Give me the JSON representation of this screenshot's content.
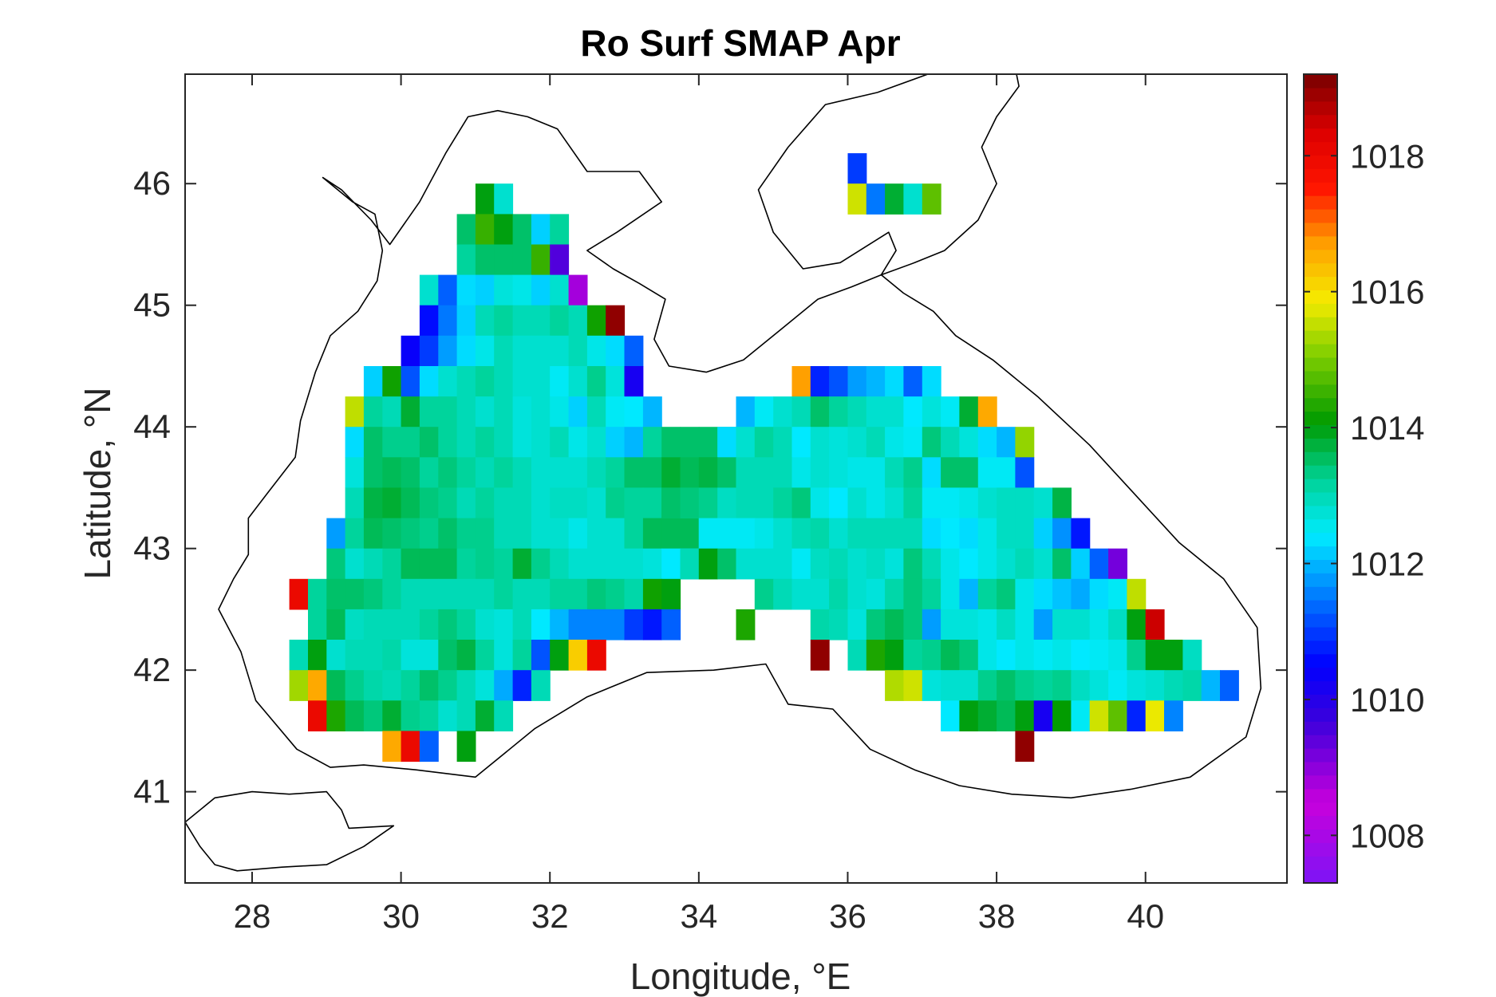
{
  "chart_data": {
    "type": "heatmap",
    "title": "Ro Surf SMAP Apr",
    "xlabel": "Longitude, °E",
    "ylabel": "Latitude, °N",
    "xlim": [
      27.1,
      41.9
    ],
    "ylim": [
      40.25,
      46.9
    ],
    "xticks": [
      28,
      30,
      32,
      34,
      36,
      38,
      40
    ],
    "yticks": [
      41,
      42,
      43,
      44,
      45,
      46
    ],
    "colorbar": {
      "min": 1007.3,
      "max": 1019.2,
      "ticks": [
        1008,
        1010,
        1012,
        1014,
        1016,
        1018
      ],
      "colormap": "jet-like (purple-blue-cyan-green-yellow-red-darkred)"
    },
    "cell_size_deg": 0.25,
    "rows": [
      {
        "lat": 45.875,
        "lon_start": 31.0,
        "values": [
          1014.0,
          1012.8
        ]
      },
      {
        "lat": 45.625,
        "lon_start": 30.75,
        "values": [
          1013.5,
          1014.5,
          1014.0,
          1013.5,
          1012.2,
          1013.2
        ]
      },
      {
        "lat": 45.375,
        "lon_start": 30.75,
        "values": [
          1013.2,
          1013.5,
          1013.5,
          1013.5,
          1014.5,
          1009.5
        ]
      },
      {
        "lat": 45.125,
        "lon_start": 30.25,
        "values": [
          1012.8,
          1011.3,
          1012.3,
          1012.2,
          1012.7,
          1012.6,
          1012.2,
          1012.8,
          1008.8
        ]
      },
      {
        "lat": 44.875,
        "lon_start": 30.25,
        "values": [
          1010.6,
          1011.5,
          1012.2,
          1013.0,
          1013.2,
          1013.0,
          1013.0,
          1013.2,
          1013.0,
          1014.2,
          1019.0
        ]
      },
      {
        "lat": 44.625,
        "lon_start": 30.0,
        "values": [
          1010.4,
          1011.0,
          1011.8,
          1012.3,
          1012.6,
          1013.0,
          1012.8,
          1012.8,
          1012.8,
          1013.0,
          1012.6,
          1012.3,
          1011.3
        ]
      },
      {
        "lat": 44.375,
        "lon_start": 29.5,
        "values": [
          1012.2,
          1014.2,
          1011.2,
          1012.3,
          1012.8,
          1013.0,
          1013.2,
          1013.0,
          1012.8,
          1012.8,
          1012.5,
          1012.8,
          1013.3,
          1012.7,
          1010.2
        ]
      },
      {
        "lat": 44.125,
        "lon_start": 29.25,
        "values": [
          1015.5,
          1013.2,
          1013.0,
          1013.8,
          1013.2,
          1013.2,
          1013.0,
          1012.8,
          1013.0,
          1012.7,
          1012.8,
          1012.6,
          1012.2,
          1013.0,
          1012.5,
          1012.4,
          1012.0
        ]
      },
      {
        "lat": 43.875,
        "lon_start": 29.25,
        "values": [
          1012.3,
          1013.5,
          1013.3,
          1013.3,
          1013.5,
          1013.2,
          1013.0,
          1013.2,
          1013.0,
          1012.7,
          1012.8,
          1013.0,
          1012.6,
          1012.8,
          1012.2,
          1012.0,
          1013.2,
          1013.5,
          1013.5,
          1013.5,
          1013.0,
          1012.5
        ]
      },
      {
        "lat": 43.625,
        "lon_start": 29.25,
        "values": [
          1012.7,
          1013.5,
          1013.6,
          1013.5,
          1013.2,
          1013.4,
          1013.2,
          1013.0,
          1013.2,
          1013.0,
          1012.8,
          1012.8,
          1012.8,
          1013.0,
          1013.2,
          1013.5,
          1013.5,
          1013.8,
          1013.6,
          1013.6
        ]
      },
      {
        "lat": 43.375,
        "lon_start": 29.25,
        "values": [
          1013.0,
          1013.7,
          1013.8,
          1013.6,
          1013.4,
          1013.3,
          1013.0,
          1013.2,
          1013.0,
          1013.0,
          1012.8,
          1012.9,
          1012.9,
          1012.8,
          1013.3,
          1013.2,
          1013.2,
          1013.6,
          1013.4,
          1013.5,
          1013.5,
          1013.0
        ]
      },
      {
        "lat": 43.125,
        "lon_start": 29.0,
        "values": [
          1011.8,
          1013.2,
          1013.6,
          1013.5,
          1013.4,
          1013.3,
          1013.5,
          1013.3,
          1013.3,
          1013.0,
          1013.0,
          1012.8,
          1012.8,
          1012.6,
          1012.8,
          1012.8,
          1013.2,
          1013.6,
          1013.6,
          1013.6,
          1013.0
        ]
      },
      {
        "lat": 42.875,
        "lon_start": 29.0,
        "values": [
          1013.4,
          1012.8,
          1013.0,
          1013.2,
          1013.6,
          1013.6,
          1013.6,
          1013.2,
          1013.3,
          1013.2,
          1013.8,
          1013.3,
          1013.0,
          1012.8,
          1012.8,
          1012.8,
          1012.8,
          1012.7,
          1012.4,
          1012.2,
          1012.8
        ]
      },
      {
        "lat": 42.625,
        "lon_start": 28.5,
        "values": [
          1018.0,
          1013.2,
          1013.5,
          1013.5,
          1013.4,
          1013.2,
          1013.0,
          1013.0,
          1013.0,
          1013.0,
          1013.0,
          1013.2,
          1013.0,
          1013.0,
          1013.2,
          1013.2,
          1013.4,
          1013.3,
          1013.1,
          1014.2,
          1014.0
        ]
      },
      {
        "lat": 42.375,
        "lon_start": 28.75,
        "values": [
          1013.2,
          1013.6,
          1012.9,
          1013.0,
          1013.0,
          1013.0,
          1013.2,
          1013.4,
          1013.2,
          1012.8,
          1012.7,
          1013.0,
          1012.4,
          1012.0,
          1011.6,
          1011.6,
          1011.6,
          1011.0,
          1010.7,
          1011.3
        ]
      },
      {
        "lat": 42.125,
        "lon_start": 28.5,
        "values": [
          1013.0,
          1014.0,
          1012.8,
          1013.0,
          1013.0,
          1013.1,
          1012.7,
          1012.7,
          1013.5,
          1013.7,
          1013.2,
          1012.7,
          1013.2,
          1011.2,
          1014.0,
          1016.2,
          1018.0
        ]
      },
      {
        "lat": 41.875,
        "lon_start": 28.5,
        "values": [
          1015.3,
          1016.6,
          1013.6,
          1013.3,
          1013.1,
          1013.0,
          1013.2,
          1013.5,
          1013.3,
          1013.0,
          1012.7,
          1011.9,
          1010.8,
          1013.0
        ]
      },
      {
        "lat": 41.625,
        "lon_start": 28.75,
        "values": [
          1018.0,
          1014.3,
          1013.6,
          1013.4,
          1013.8,
          1013.3,
          1013.2,
          1012.8,
          1013.0,
          1013.8,
          1013.0
        ]
      },
      {
        "lat": 41.375,
        "lon_start": 29.75,
        "values": [
          1016.6,
          1018.0,
          1011.3,
          null,
          1014.0
        ]
      },
      {
        "lat": 44.375,
        "lon_start": 35.25,
        "values": [
          1016.7,
          1010.8,
          1011.2,
          1011.8,
          1012.0,
          1012.3,
          1011.3,
          1012.3
        ]
      },
      {
        "lat": 44.125,
        "lon_start": 34.5,
        "values": [
          1012.0,
          1012.5,
          1012.8,
          1013.0,
          1013.5,
          1013.2,
          1013.0,
          1012.8,
          1012.8,
          1012.4,
          1012.7,
          1012.5,
          1013.8,
          1016.6
        ]
      },
      {
        "lat": 43.875,
        "lon_start": 34.25,
        "values": [
          1012.3,
          1012.8,
          1013.2,
          1013.0,
          1012.4,
          1012.8,
          1012.7,
          1012.8,
          1013.0,
          1012.6,
          1012.5,
          1013.4,
          1013.0,
          1012.7,
          1012.3,
          1012.0,
          1015.2
        ]
      },
      {
        "lat": 43.625,
        "lon_start": 34.0,
        "values": [
          1013.7,
          1013.5,
          1013.0,
          1013.0,
          1013.0,
          1012.6,
          1012.8,
          1012.7,
          1012.6,
          1012.6,
          1013.0,
          1013.3,
          1012.3,
          1013.5,
          1013.5,
          1012.5,
          1012.5,
          1011.2
        ]
      },
      {
        "lat": 43.375,
        "lon_start": 33.5,
        "values": [
          1013.5,
          1013.4,
          1013.3,
          1012.9,
          1013.0,
          1013.0,
          1013.2,
          1013.4,
          1012.6,
          1012.4,
          1012.8,
          1012.6,
          1012.8,
          1013.2,
          1012.5,
          1012.5,
          1012.6,
          1012.8,
          1012.9,
          1012.9,
          1012.8,
          1013.7
        ]
      },
      {
        "lat": 43.125,
        "lon_start": 34.0,
        "values": [
          1012.5,
          1012.5,
          1012.5,
          1012.6,
          1012.8,
          1013.0,
          1013.1,
          1012.8,
          1013.0,
          1013.0,
          1013.0,
          1013.0,
          1012.3,
          1012.4,
          1012.3,
          1012.6,
          1012.9,
          1012.9,
          1012.2,
          1011.7,
          1010.7
        ]
      },
      {
        "lat": 42.875,
        "lon_start": 33.75,
        "values": [
          1013.0,
          1014.0,
          1013.5,
          1012.8,
          1012.8,
          1012.8,
          1012.5,
          1012.9,
          1013.0,
          1012.8,
          1012.9,
          1012.7,
          1013.4,
          1013.0,
          1012.6,
          1012.4,
          1012.6,
          1012.8,
          1013.0,
          1012.8,
          1013.5,
          1012.2,
          1011.3,
          1009.2
        ]
      },
      {
        "lat": 42.625,
        "lon_start": 34.75,
        "values": [
          1013.3,
          1013.0,
          1012.8,
          1012.8,
          1013.1,
          1012.8,
          1012.7,
          1013.1,
          1013.4,
          1013.2,
          1012.6,
          1012.0,
          1013.2,
          1013.4,
          1012.6,
          1012.3,
          1012.1,
          1011.9,
          1012.3,
          1012.5,
          1015.5
        ]
      },
      {
        "lat": 42.375,
        "lon_start": 34.5,
        "values": [
          1014.3,
          null,
          null,
          null,
          1013.1,
          1013.0,
          1012.7,
          1013.4,
          1013.6,
          1013.4,
          1011.8,
          1012.7,
          1012.7,
          1012.6,
          1012.9,
          1012.6,
          1011.8,
          1012.8,
          1012.8,
          1012.6,
          1012.9,
          1014.0,
          1018.5
        ]
      },
      {
        "lat": 42.125,
        "lon_start": 35.5,
        "values": [
          1019.0,
          null,
          1013.0,
          1014.3,
          1014.0,
          1013.2,
          1013.3,
          1013.6,
          1013.4,
          1012.6,
          1012.4,
          1012.6,
          1012.5,
          1012.6,
          1012.4,
          1012.5,
          1012.6,
          1013.3,
          1014.0,
          1014.0,
          1012.9
        ]
      },
      {
        "lat": 41.875,
        "lon_start": 36.5,
        "values": [
          1015.4,
          1015.6,
          1012.7,
          1012.8,
          1012.8,
          1013.3,
          1013.5,
          1013.3,
          1013.2,
          1013.3,
          1012.9,
          1012.7,
          1012.5,
          1012.7,
          1012.8,
          1013.0,
          1013.1,
          1012.0,
          1011.3
        ]
      },
      {
        "lat": 41.625,
        "lon_start": 37.25,
        "values": [
          1012.4,
          1014.0,
          1013.8,
          1013.6,
          1014.0,
          1010.2,
          1014.1,
          1012.5,
          1015.6,
          1014.8,
          1010.8,
          1015.8,
          1011.6
        ]
      },
      {
        "lat": 41.375,
        "lon_start": 38.25,
        "values": [
          1019.0
        ]
      },
      {
        "lat": 46.125,
        "lon_start": 36.0,
        "values": [
          1011.0
        ]
      },
      {
        "lat": 45.875,
        "lon_start": 36.0,
        "values": [
          1015.6,
          1011.5,
          1013.8,
          1012.8,
          1014.8
        ]
      }
    ],
    "coastline": [
      [
        28.95,
        46.05
      ],
      [
        29.35,
        45.85
      ],
      [
        29.65,
        45.75
      ],
      [
        29.75,
        45.45
      ],
      [
        29.68,
        45.2
      ],
      [
        29.42,
        44.95
      ],
      [
        29.05,
        44.75
      ],
      [
        28.85,
        44.45
      ],
      [
        28.65,
        44.05
      ],
      [
        28.58,
        43.75
      ],
      [
        28.2,
        43.45
      ],
      [
        27.95,
        43.25
      ],
      [
        27.95,
        42.95
      ],
      [
        27.75,
        42.75
      ],
      [
        27.55,
        42.5
      ],
      [
        27.85,
        42.15
      ],
      [
        28.05,
        41.75
      ],
      [
        28.6,
        41.35
      ],
      [
        29.05,
        41.2
      ],
      [
        29.5,
        41.22
      ],
      [
        30.2,
        41.18
      ],
      [
        31.0,
        41.12
      ],
      [
        31.8,
        41.52
      ],
      [
        32.5,
        41.78
      ],
      [
        33.3,
        41.98
      ],
      [
        34.2,
        42.0
      ],
      [
        34.9,
        42.05
      ],
      [
        35.2,
        41.72
      ],
      [
        35.8,
        41.68
      ],
      [
        36.3,
        41.35
      ],
      [
        36.9,
        41.18
      ],
      [
        37.5,
        41.05
      ],
      [
        38.2,
        40.98
      ],
      [
        39.0,
        40.95
      ],
      [
        39.8,
        41.02
      ],
      [
        40.6,
        41.12
      ],
      [
        41.35,
        41.45
      ],
      [
        41.55,
        41.85
      ],
      [
        41.5,
        42.35
      ],
      [
        41.05,
        42.75
      ],
      [
        40.45,
        43.05
      ],
      [
        39.85,
        43.45
      ],
      [
        39.25,
        43.85
      ],
      [
        38.55,
        44.25
      ],
      [
        37.95,
        44.55
      ],
      [
        37.45,
        44.75
      ],
      [
        37.15,
        44.95
      ],
      [
        36.75,
        45.1
      ],
      [
        36.45,
        45.25
      ],
      [
        36.05,
        45.15
      ],
      [
        35.6,
        45.05
      ],
      [
        35.1,
        44.8
      ],
      [
        34.6,
        44.55
      ],
      [
        34.1,
        44.45
      ],
      [
        33.6,
        44.5
      ],
      [
        33.4,
        44.72
      ],
      [
        33.55,
        45.05
      ],
      [
        33.2,
        45.18
      ],
      [
        32.85,
        45.3
      ],
      [
        32.5,
        45.45
      ],
      [
        32.9,
        45.6
      ],
      [
        33.5,
        45.85
      ],
      [
        33.2,
        46.1
      ],
      [
        32.5,
        46.1
      ],
      [
        32.1,
        46.45
      ],
      [
        31.7,
        46.55
      ],
      [
        31.3,
        46.6
      ],
      [
        30.9,
        46.55
      ],
      [
        30.6,
        46.25
      ],
      [
        30.25,
        45.85
      ],
      [
        29.85,
        45.5
      ],
      [
        29.6,
        45.7
      ],
      [
        29.2,
        45.95
      ],
      [
        28.95,
        46.05
      ]
    ],
    "azov_coast": [
      [
        36.45,
        45.25
      ],
      [
        36.65,
        45.45
      ],
      [
        36.55,
        45.6
      ],
      [
        35.9,
        45.35
      ],
      [
        35.4,
        45.3
      ],
      [
        35.0,
        45.6
      ],
      [
        34.8,
        45.95
      ],
      [
        35.2,
        46.3
      ],
      [
        35.7,
        46.65
      ],
      [
        36.4,
        46.75
      ],
      [
        37.3,
        46.95
      ],
      [
        38.2,
        47.1
      ],
      [
        38.3,
        46.8
      ],
      [
        38.0,
        46.55
      ],
      [
        37.8,
        46.3
      ],
      [
        38.0,
        46.0
      ],
      [
        37.75,
        45.7
      ],
      [
        37.3,
        45.45
      ],
      [
        36.9,
        45.35
      ],
      [
        36.45,
        45.25
      ]
    ],
    "marmara_coast": [
      [
        27.1,
        40.75
      ],
      [
        27.5,
        40.95
      ],
      [
        28.0,
        41.0
      ],
      [
        28.5,
        40.98
      ],
      [
        29.0,
        41.0
      ],
      [
        29.2,
        40.85
      ],
      [
        29.3,
        40.7
      ],
      [
        29.9,
        40.72
      ],
      [
        29.5,
        40.55
      ],
      [
        29.0,
        40.4
      ],
      [
        28.4,
        40.38
      ],
      [
        27.8,
        40.35
      ],
      [
        27.5,
        40.4
      ],
      [
        27.3,
        40.55
      ],
      [
        27.1,
        40.75
      ]
    ]
  }
}
